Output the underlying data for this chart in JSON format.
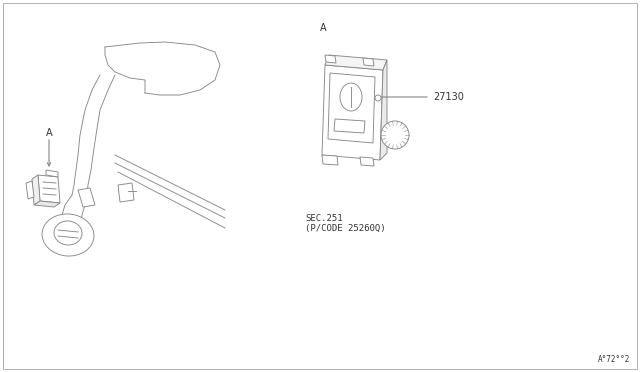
{
  "background_color": "#ffffff",
  "border_color": "#b0b0b0",
  "label_A_left": "A",
  "label_A_right": "A",
  "part_number": "27130",
  "sec_text": "SEC.251",
  "pcode_text": "(P/CODE 25260Q)",
  "footer_text": "A°72°°2",
  "line_color": "#888888",
  "text_color": "#333333",
  "font_size_label": 7,
  "font_size_part": 7,
  "font_size_sec": 6.5,
  "font_size_footer": 5.5
}
